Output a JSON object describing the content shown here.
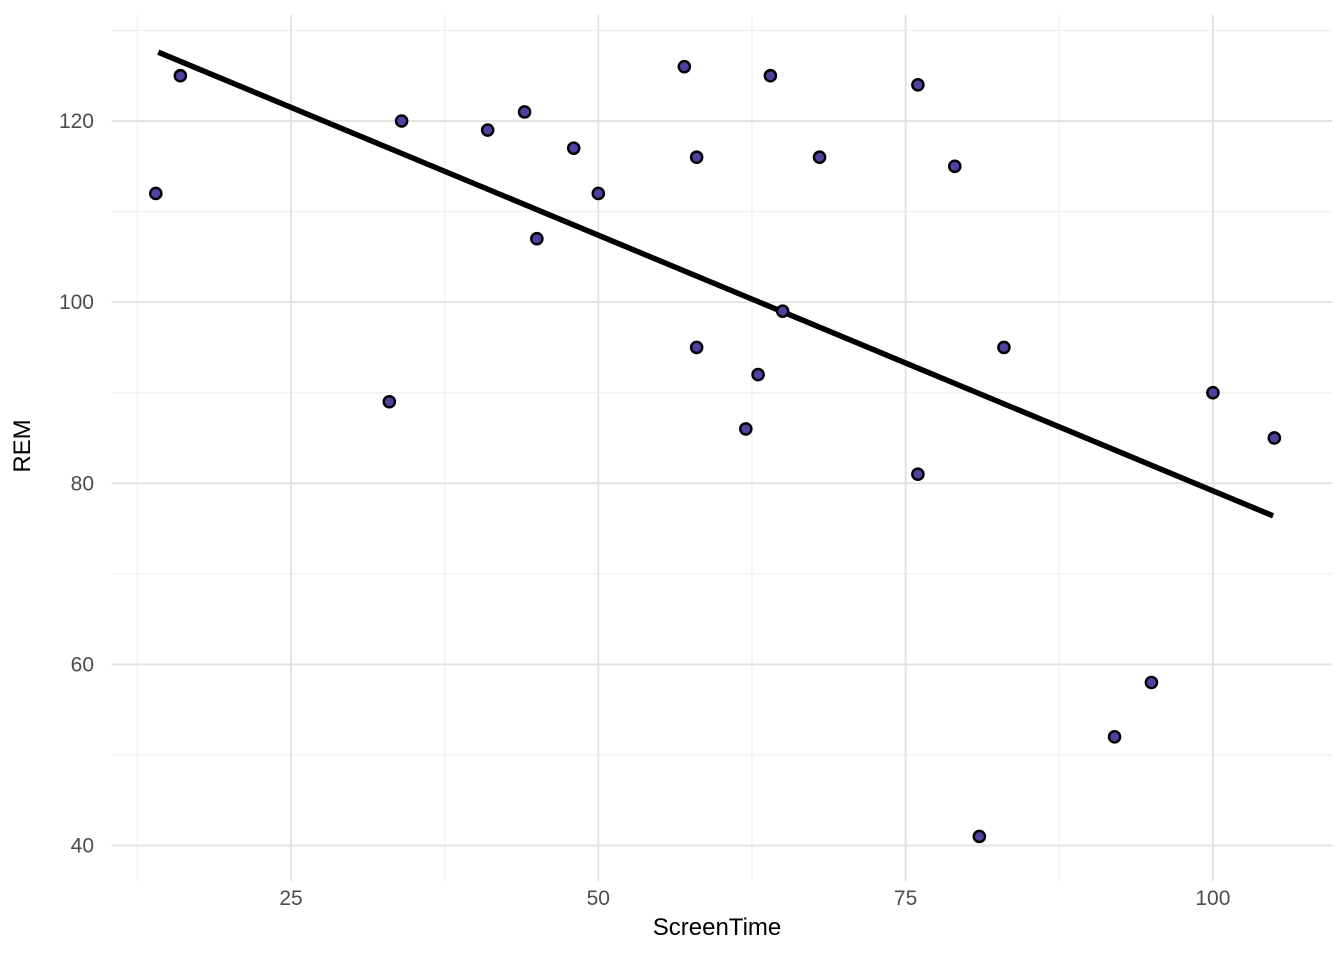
{
  "chart_data": {
    "type": "scatter",
    "title": "",
    "xlabel": "ScreenTime",
    "ylabel": "REM",
    "x_ticks": [
      25,
      50,
      75,
      100
    ],
    "x_tick_labels": [
      "25",
      "50",
      "75",
      "100"
    ],
    "y_ticks": [
      40,
      60,
      80,
      100,
      120
    ],
    "y_tick_labels": [
      "40",
      "60",
      "80",
      "100",
      "120"
    ],
    "x_minor_ticks": [
      12.5,
      37.5,
      62.5,
      87.5
    ],
    "y_minor_ticks": [
      50,
      70,
      90,
      110,
      130
    ],
    "xlim": [
      10.4,
      109.7
    ],
    "ylim": [
      36.2,
      131.8
    ],
    "grid": "major+minor",
    "legend": "none",
    "points": [
      [
        14,
        112
      ],
      [
        16,
        125
      ],
      [
        33,
        89
      ],
      [
        34,
        120
      ],
      [
        41,
        119
      ],
      [
        44,
        121
      ],
      [
        45,
        107
      ],
      [
        48,
        117
      ],
      [
        50,
        112
      ],
      [
        57,
        126
      ],
      [
        58,
        116
      ],
      [
        58,
        95
      ],
      [
        62,
        86
      ],
      [
        63,
        92
      ],
      [
        64,
        125
      ],
      [
        65,
        99
      ],
      [
        68,
        116
      ],
      [
        76,
        124
      ],
      [
        76,
        81
      ],
      [
        79,
        115
      ],
      [
        81,
        41
      ],
      [
        83,
        95
      ],
      [
        92,
        52
      ],
      [
        95,
        58
      ],
      [
        100,
        90
      ],
      [
        105,
        85
      ]
    ],
    "regression_line": {
      "x1": 14.2,
      "y1": 127.6,
      "x2": 104.9,
      "y2": 76.4
    },
    "colors": {
      "point_fill": "#5040a2",
      "point_stroke": "#000000",
      "line": "#000000",
      "grid_major": "#e3e3e3",
      "grid_minor": "#f0f0f0",
      "tick_label": "#4d4d4d",
      "axis_title": "#000000",
      "background": "#ffffff"
    }
  }
}
